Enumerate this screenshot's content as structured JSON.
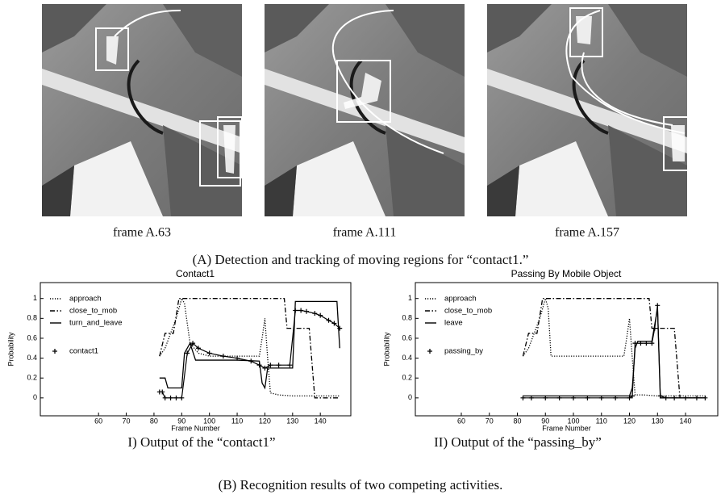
{
  "figure_a": {
    "frames": [
      "frame A.63",
      "frame A.111",
      "frame A.157"
    ],
    "caption": "(A) Detection and tracking of moving regions for “contact1.”"
  },
  "chart_data": [
    {
      "type": "line",
      "title": "Contact1",
      "xlabel": "Frame Number",
      "ylabel": "Probability",
      "xlim": [
        39,
        151
      ],
      "ylim": [
        -0.18,
        1.16
      ],
      "xticks": [
        60,
        70,
        80,
        90,
        100,
        110,
        120,
        130,
        140
      ],
      "yticks": [
        0,
        0.2,
        0.4,
        0.6,
        0.8,
        1
      ],
      "legend": "upper left",
      "series": [
        {
          "name": "approach",
          "color": "#000000",
          "dash": "dotted",
          "x": [
            82,
            84,
            86,
            88,
            90,
            91,
            93,
            96,
            100,
            110,
            118,
            119,
            120,
            121,
            122,
            125,
            130,
            140,
            147
          ],
          "values": [
            0.42,
            0.5,
            0.65,
            0.8,
            1.0,
            0.95,
            0.55,
            0.45,
            0.42,
            0.42,
            0.42,
            0.6,
            0.8,
            0.4,
            0.05,
            0.03,
            0.02,
            0.02,
            0.02
          ]
        },
        {
          "name": "close_to_mob",
          "color": "#000000",
          "dash": "dashdot",
          "x": [
            82,
            84,
            87,
            89,
            90,
            127,
            128,
            136,
            138,
            147
          ],
          "values": [
            0.42,
            0.65,
            0.65,
            1.0,
            1.0,
            1.0,
            0.7,
            0.7,
            0.0,
            0.0
          ]
        },
        {
          "name": "turn_and_leave",
          "color": "#000000",
          "dash": "solid",
          "x": [
            82,
            84,
            85,
            90,
            91,
            93,
            95,
            100,
            110,
            118,
            119,
            120,
            121,
            130,
            131,
            146,
            147
          ],
          "values": [
            0.2,
            0.2,
            0.1,
            0.1,
            0.45,
            0.55,
            0.38,
            0.38,
            0.38,
            0.37,
            0.15,
            0.1,
            0.3,
            0.3,
            0.97,
            0.97,
            0.5
          ]
        },
        {
          "name": "contact1",
          "color": "#000000",
          "dash": "solid",
          "marker": "+",
          "x": [
            82,
            83,
            84,
            86,
            88,
            90,
            92,
            94,
            96,
            100,
            105,
            110,
            115,
            118,
            120,
            122,
            125,
            129,
            131,
            133,
            135,
            138,
            140,
            143,
            145,
            147
          ],
          "values": [
            0.06,
            0.06,
            0.0,
            0.0,
            0.0,
            0.0,
            0.45,
            0.55,
            0.5,
            0.45,
            0.42,
            0.4,
            0.37,
            0.33,
            0.3,
            0.33,
            0.33,
            0.33,
            0.88,
            0.88,
            0.87,
            0.85,
            0.83,
            0.78,
            0.75,
            0.7
          ]
        }
      ]
    },
    {
      "type": "line",
      "title": "Passing By Mobile Object",
      "xlabel": "Frame Number",
      "ylabel": "Probability",
      "xlim": [
        43.6,
        151.5
      ],
      "ylim": [
        -0.18,
        1.16
      ],
      "xticks": [
        60,
        70,
        80,
        90,
        100,
        110,
        120,
        130,
        140
      ],
      "yticks": [
        0,
        0.2,
        0.4,
        0.6,
        0.8,
        1
      ],
      "legend": "upper left",
      "series": [
        {
          "name": "approach",
          "color": "#000000",
          "dash": "dotted",
          "x": [
            82,
            84,
            86,
            88,
            90,
            91,
            92,
            100,
            110,
            118,
            119,
            120,
            121,
            122,
            125,
            130,
            140,
            147
          ],
          "values": [
            0.42,
            0.5,
            0.65,
            0.8,
            1.0,
            0.9,
            0.42,
            0.42,
            0.42,
            0.42,
            0.6,
            0.8,
            0.4,
            0.03,
            0.03,
            0.02,
            0.02,
            0.02
          ]
        },
        {
          "name": "close_to_mob",
          "color": "#000000",
          "dash": "dashdot",
          "x": [
            82,
            84,
            87,
            89,
            90,
            127,
            128,
            136,
            138,
            147
          ],
          "values": [
            0.42,
            0.65,
            0.65,
            1.0,
            1.0,
            1.0,
            0.7,
            0.7,
            0.0,
            0.0
          ]
        },
        {
          "name": "leave",
          "color": "#000000",
          "dash": "solid",
          "x": [
            82,
            100,
            120,
            121,
            122,
            123,
            128,
            130,
            131,
            140,
            147
          ],
          "values": [
            0.02,
            0.02,
            0.02,
            0.1,
            0.5,
            0.57,
            0.57,
            0.9,
            0.0,
            0.0,
            0.0
          ]
        },
        {
          "name": "passing_by",
          "color": "#000000",
          "dash": "solid",
          "marker": "+",
          "x": [
            82,
            85,
            90,
            95,
            100,
            105,
            110,
            115,
            120,
            121,
            122,
            124,
            126,
            128,
            129,
            130,
            131,
            133,
            136,
            140,
            144,
            147
          ],
          "values": [
            0.0,
            0.0,
            0.0,
            0.0,
            0.0,
            0.0,
            0.0,
            0.0,
            0.0,
            0.02,
            0.55,
            0.55,
            0.55,
            0.55,
            0.7,
            0.93,
            0.02,
            0.0,
            0.0,
            0.0,
            0.0,
            0.0
          ]
        }
      ]
    }
  ],
  "panel_captions": [
    "I) Output of the “contact1”",
    "II) Output of the “passing_by”"
  ],
  "caption_b": "(B) Recognition results of two competing activities."
}
